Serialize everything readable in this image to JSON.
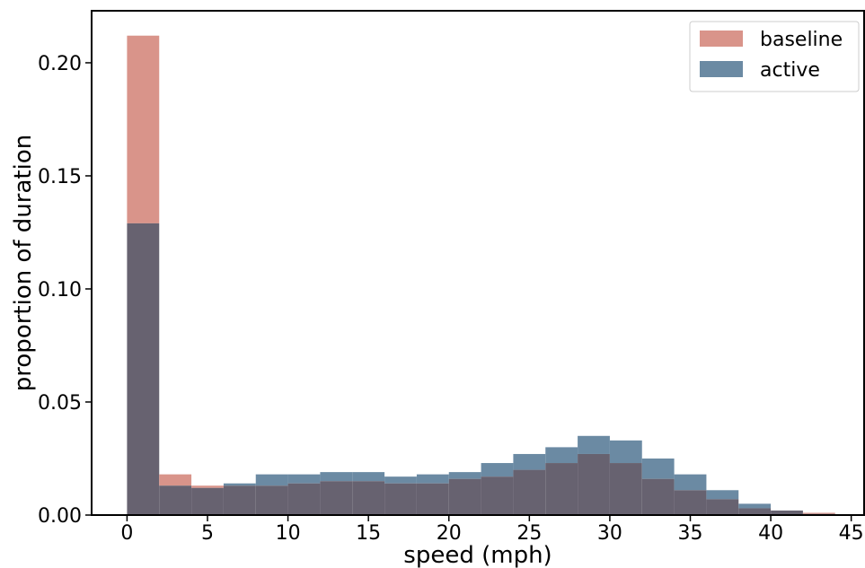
{
  "chart_data": {
    "type": "bar",
    "xlabel": "speed (mph)",
    "ylabel": "proportion of duration",
    "xlim": [
      -2.2,
      45.8
    ],
    "ylim": [
      0,
      0.223
    ],
    "xticks": [
      0,
      5,
      10,
      15,
      20,
      25,
      30,
      35,
      40,
      45
    ],
    "xtick_labels": [
      "0",
      "5",
      "10",
      "15",
      "20",
      "25",
      "30",
      "35",
      "40",
      "45"
    ],
    "yticks": [
      0,
      0.05,
      0.1,
      0.15,
      0.2
    ],
    "ytick_labels": [
      "0.00",
      "0.05",
      "0.10",
      "0.15",
      "0.20"
    ],
    "bin_width": 2,
    "bin_starts": [
      0,
      2,
      4,
      6,
      8,
      10,
      12,
      14,
      16,
      18,
      20,
      22,
      24,
      26,
      28,
      30,
      32,
      34,
      36,
      38,
      40,
      42
    ],
    "series": [
      {
        "name": "baseline",
        "color": "#d9948a",
        "values": [
          0.212,
          0.018,
          0.013,
          0.013,
          0.013,
          0.014,
          0.015,
          0.015,
          0.014,
          0.014,
          0.016,
          0.017,
          0.02,
          0.023,
          0.027,
          0.023,
          0.016,
          0.011,
          0.007,
          0.003,
          0.002,
          0.001
        ]
      },
      {
        "name": "active",
        "color": "#6b8aa3",
        "values": [
          0.129,
          0.013,
          0.012,
          0.014,
          0.018,
          0.018,
          0.019,
          0.019,
          0.017,
          0.018,
          0.019,
          0.023,
          0.027,
          0.03,
          0.035,
          0.033,
          0.025,
          0.018,
          0.011,
          0.005,
          0.002,
          0.0005
        ]
      }
    ],
    "overlap_color": "#676270",
    "legend": {
      "placement": "top-right"
    }
  }
}
